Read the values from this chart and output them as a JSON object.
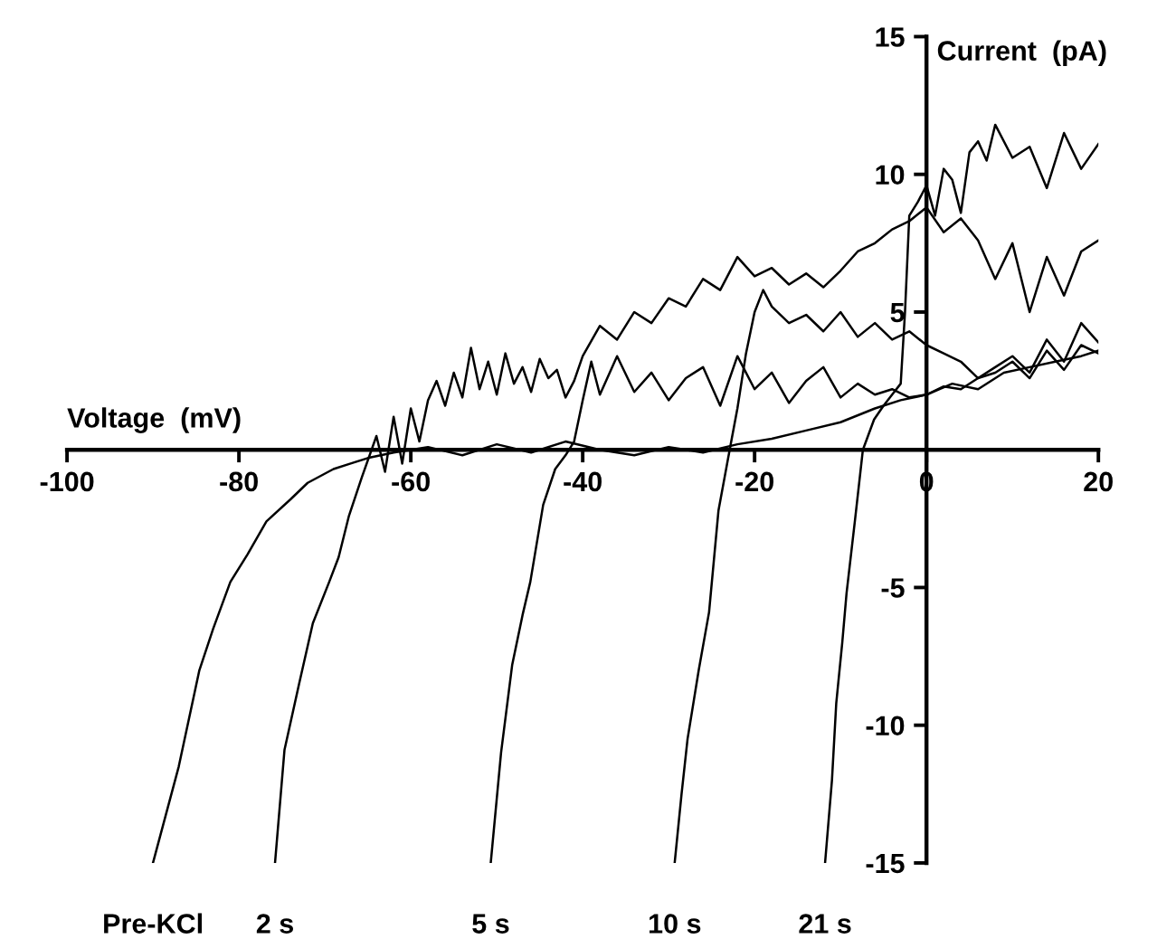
{
  "chart_data": {
    "type": "line",
    "xlabel": "Voltage  (mV)",
    "ylabel": "Current  (pA)",
    "xlim": [
      -100,
      20
    ],
    "ylim": [
      -15,
      15
    ],
    "xticks": [
      -100,
      -80,
      -60,
      -40,
      -20,
      0,
      20
    ],
    "yticks": [
      15,
      10,
      5,
      -5,
      -10,
      -15
    ],
    "series": [
      {
        "name": "Pre-KCl",
        "color": "#000000",
        "x": [
          -90,
          -87,
          -84.6,
          -83,
          -81,
          -79,
          -76.8,
          -74,
          -72,
          -69,
          -67,
          -65,
          -62,
          -58,
          -54,
          -50,
          -46,
          -42,
          -38,
          -34,
          -30,
          -26,
          -22,
          -18,
          -14,
          -10,
          -6,
          -3,
          0,
          3,
          6,
          9,
          12,
          15,
          18,
          20
        ],
        "values": [
          -15,
          -11.5,
          -8,
          -6.5,
          -4.8,
          -3.8,
          -2.6,
          -1.8,
          -1.2,
          -0.7,
          -0.5,
          -0.3,
          -0.1,
          0.1,
          -0.2,
          0.2,
          -0.1,
          0.3,
          0,
          -0.2,
          0.1,
          -0.1,
          0.2,
          0.4,
          0.7,
          1.0,
          1.5,
          1.8,
          2.0,
          2.4,
          2.2,
          2.8,
          3.0,
          3.2,
          3.4,
          3.6
        ]
      },
      {
        "name": "2 s",
        "color": "#000000",
        "x": [
          -75.8,
          -74.7,
          -73,
          -71.4,
          -69.5,
          -68.4,
          -67.2,
          -65.7,
          -64,
          -63,
          -62,
          -61,
          -60,
          -59,
          -58,
          -57,
          -56,
          -55,
          -54,
          -53,
          -52,
          -51,
          -50,
          -49,
          -48,
          -47,
          -46,
          -45,
          -44,
          -43,
          -42,
          -41,
          -40,
          -38,
          -36,
          -34,
          -32,
          -30,
          -28,
          -26,
          -24,
          -22,
          -20,
          -18,
          -16,
          -14,
          -12,
          -10,
          -8,
          -6,
          -4,
          -2,
          0,
          2,
          4,
          6,
          8,
          10,
          12,
          14,
          16,
          18,
          20
        ],
        "values": [
          -15,
          -10.9,
          -8.5,
          -6.3,
          -4.8,
          -3.9,
          -2.4,
          -1.0,
          0.5,
          -0.8,
          1.2,
          -0.5,
          1.5,
          0.3,
          1.8,
          2.5,
          1.6,
          2.8,
          1.9,
          3.7,
          2.2,
          3.2,
          2.0,
          3.5,
          2.4,
          3.0,
          2.1,
          3.3,
          2.6,
          2.9,
          1.9,
          2.5,
          3.4,
          4.5,
          4.0,
          5.0,
          4.6,
          5.5,
          5.2,
          6.2,
          5.8,
          7.0,
          6.3,
          6.6,
          6.0,
          6.4,
          5.9,
          6.5,
          7.2,
          7.5,
          8.0,
          8.3,
          8.8,
          7.9,
          8.4,
          7.6,
          6.2,
          7.5,
          5.0,
          7.0,
          5.6,
          7.2,
          7.6
        ]
      },
      {
        "name": "5 s",
        "color": "#000000",
        "x": [
          -50.7,
          -49.5,
          -48.2,
          -47,
          -46.1,
          -44.6,
          -43.2,
          -42,
          -41,
          -40,
          -39,
          -38,
          -36,
          -34,
          -32,
          -30,
          -28,
          -26,
          -24,
          -22,
          -20,
          -18,
          -16,
          -14,
          -12,
          -10,
          -8,
          -6,
          -4,
          -2,
          0,
          2,
          4,
          6,
          8,
          10,
          12,
          14,
          16,
          18,
          20
        ],
        "values": [
          -15,
          -11,
          -7.8,
          -6,
          -4.8,
          -2.0,
          -0.7,
          -0.2,
          0.3,
          1.8,
          3.2,
          2.0,
          3.4,
          2.1,
          2.8,
          1.8,
          2.6,
          3.0,
          1.6,
          3.4,
          2.2,
          2.8,
          1.7,
          2.5,
          3.0,
          1.9,
          2.4,
          2.0,
          2.2,
          1.9,
          2.0,
          2.3,
          2.2,
          2.6,
          2.8,
          3.2,
          2.6,
          3.6,
          2.9,
          3.8,
          3.5
        ]
      },
      {
        "name": "10 s",
        "color": "#000000",
        "x": [
          -29.3,
          -28.5,
          -27.8,
          -26.5,
          -25.3,
          -24.2,
          -22.9,
          -22,
          -21,
          -20,
          -19,
          -18,
          -16,
          -14,
          -12,
          -10,
          -8,
          -6,
          -4,
          -2,
          0,
          2,
          4,
          6,
          8,
          10,
          12,
          14,
          16,
          18,
          20
        ],
        "values": [
          -15,
          -12.5,
          -10.5,
          -8,
          -5.9,
          -2.2,
          0,
          1.5,
          3.5,
          5.0,
          5.8,
          5.2,
          4.6,
          4.9,
          4.3,
          5.0,
          4.1,
          4.6,
          4.0,
          4.3,
          3.8,
          3.5,
          3.2,
          2.6,
          3.0,
          3.4,
          2.8,
          4.0,
          3.2,
          4.6,
          3.9
        ]
      },
      {
        "name": "21 s",
        "color": "#000000",
        "x": [
          -11.8,
          -11,
          -10.5,
          -9.8,
          -9.3,
          -8.3,
          -7.4,
          -6.1,
          -5,
          -4,
          -3,
          -2.5,
          -2,
          -1,
          0,
          1,
          2,
          3,
          4,
          5,
          6,
          7,
          8,
          10,
          12,
          14,
          16,
          18,
          20
        ],
        "values": [
          -15,
          -12,
          -9.2,
          -7,
          -5.2,
          -2.5,
          0,
          1.1,
          1.6,
          2.0,
          2.4,
          5.0,
          8.5,
          9.0,
          9.6,
          8.5,
          10.2,
          9.8,
          8.6,
          10.8,
          11.2,
          10.5,
          11.8,
          10.6,
          11.0,
          9.5,
          11.5,
          10.2,
          11.1
        ]
      }
    ]
  }
}
